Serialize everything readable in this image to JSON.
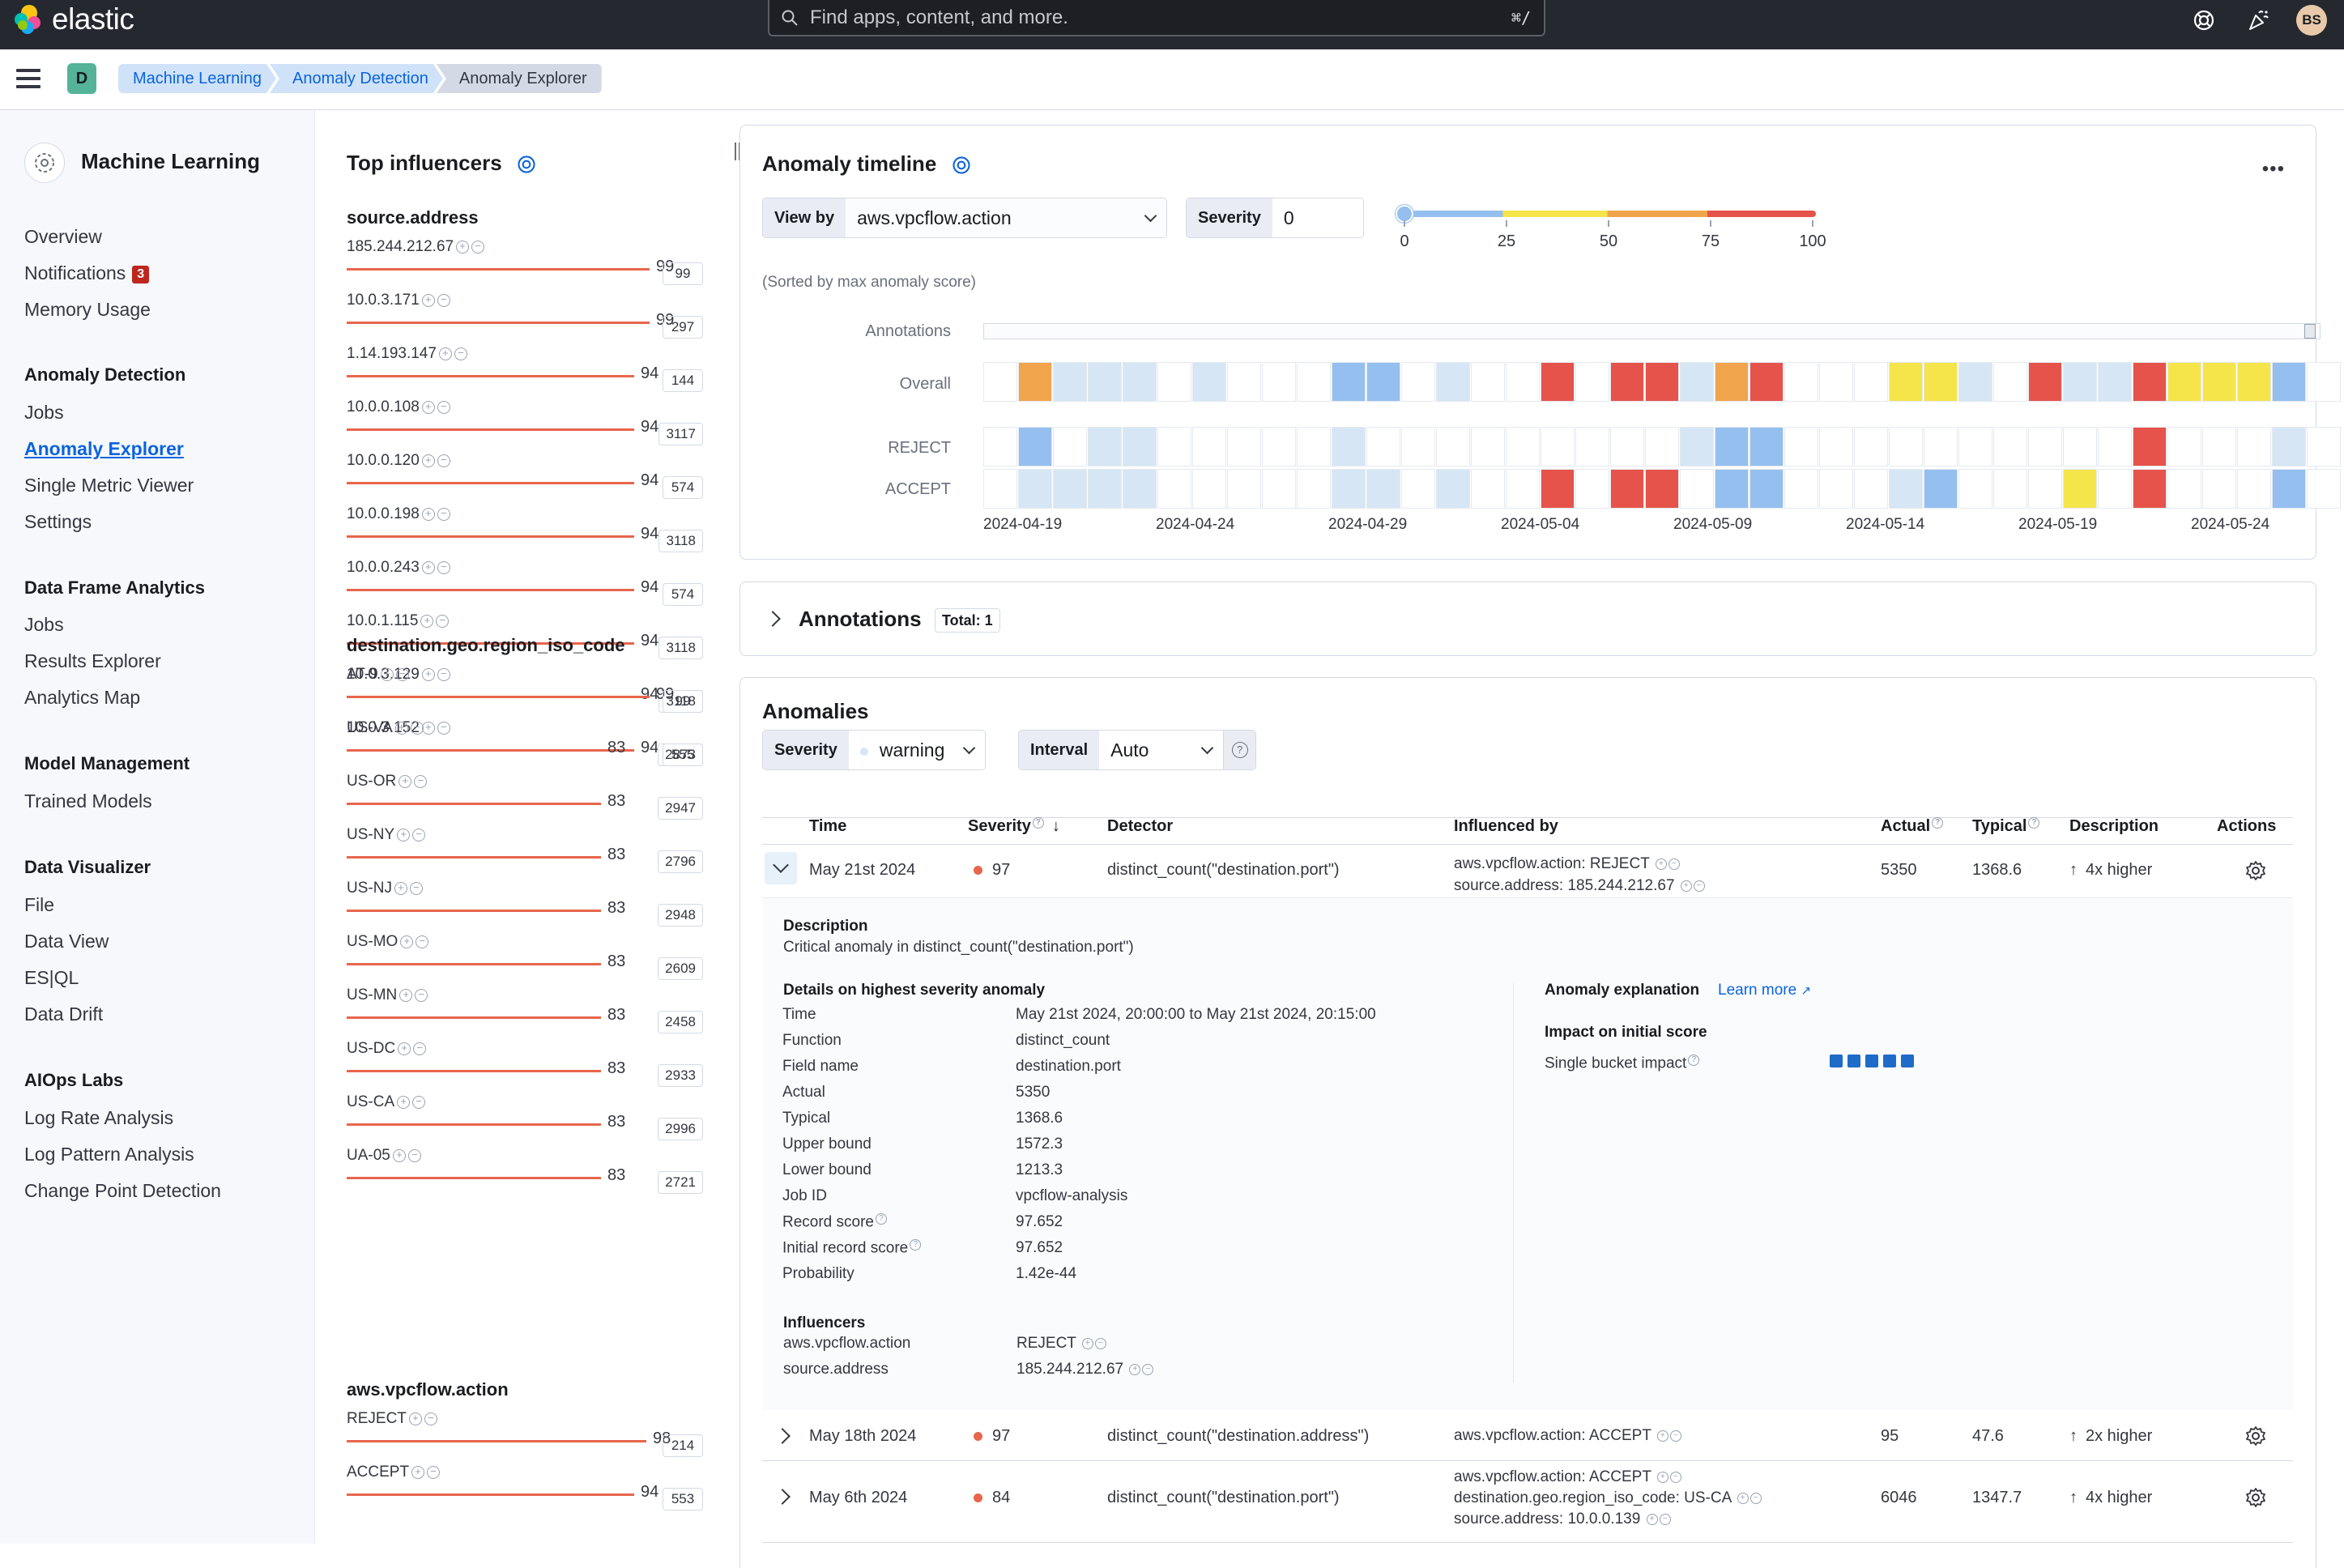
{
  "topbar": {
    "brand": "elastic",
    "search_placeholder": "Find apps, content, and more.",
    "search_shortcut": "⌘/",
    "avatar_initials": "BS"
  },
  "subbar": {
    "space_initial": "D",
    "breadcrumbs": [
      "Machine Learning",
      "Anomaly Detection",
      "Anomaly Explorer"
    ]
  },
  "sidebar": {
    "title": "Machine Learning",
    "items_top": [
      "Overview",
      "Notifications",
      "Memory Usage"
    ],
    "notifications_badge": "3",
    "sections": [
      {
        "title": "Anomaly Detection",
        "items": [
          "Jobs",
          "Anomaly Explorer",
          "Single Metric Viewer",
          "Settings"
        ]
      },
      {
        "title": "Data Frame Analytics",
        "items": [
          "Jobs",
          "Results Explorer",
          "Analytics Map"
        ]
      },
      {
        "title": "Model Management",
        "items": [
          "Trained Models"
        ]
      },
      {
        "title": "Data Visualizer",
        "items": [
          "File",
          "Data View",
          "ES|QL",
          "Data Drift"
        ]
      },
      {
        "title": "AIOps Labs",
        "items": [
          "Log Rate Analysis",
          "Log Pattern Analysis",
          "Change Point Detection"
        ]
      }
    ]
  },
  "influencers": {
    "title": "Top influencers",
    "groups": [
      {
        "field": "source.address",
        "rows": [
          {
            "name": "185.244.212.67",
            "score": 99,
            "count": "99"
          },
          {
            "name": "10.0.3.171",
            "score": 99,
            "count": "297"
          },
          {
            "name": "1.14.193.147",
            "score": 94,
            "count": "144"
          },
          {
            "name": "10.0.0.108",
            "score": 94,
            "count": "3117"
          },
          {
            "name": "10.0.0.120",
            "score": 94,
            "count": "574"
          },
          {
            "name": "10.0.0.198",
            "score": 94,
            "count": "3118"
          },
          {
            "name": "10.0.0.243",
            "score": 94,
            "count": "574"
          },
          {
            "name": "10.0.1.115",
            "score": 94,
            "count": "3118"
          },
          {
            "name": "10.0.3.129",
            "score": 94,
            "count": "3118"
          },
          {
            "name": "10.0.3.152",
            "score": 94,
            "count": "555"
          }
        ]
      },
      {
        "field": "destination.geo.region_iso_code",
        "rows": [
          {
            "name": "AT-9",
            "score": 99,
            "count": "99"
          },
          {
            "name": "US-VA",
            "score": 83,
            "count": "2873"
          },
          {
            "name": "US-OR",
            "score": 83,
            "count": "2947"
          },
          {
            "name": "US-NY",
            "score": 83,
            "count": "2796"
          },
          {
            "name": "US-NJ",
            "score": 83,
            "count": "2948"
          },
          {
            "name": "US-MO",
            "score": 83,
            "count": "2609"
          },
          {
            "name": "US-MN",
            "score": 83,
            "count": "2458"
          },
          {
            "name": "US-DC",
            "score": 83,
            "count": "2933"
          },
          {
            "name": "US-CA",
            "score": 83,
            "count": "2996"
          },
          {
            "name": "UA-05",
            "score": 83,
            "count": "2721"
          }
        ]
      },
      {
        "field": "aws.vpcflow.action",
        "rows": [
          {
            "name": "REJECT",
            "score": 98,
            "count": "214"
          },
          {
            "name": "ACCEPT",
            "score": 94,
            "count": "553"
          }
        ]
      }
    ]
  },
  "timeline": {
    "title": "Anomaly timeline",
    "view_by_label": "View by",
    "view_by_value": "aws.vpcflow.action",
    "severity_label": "Severity",
    "severity_value": "0",
    "scale_ticks": [
      "0",
      "25",
      "50",
      "75",
      "100"
    ],
    "sorted_note": "(Sorted by max anomaly score)",
    "rows": [
      "Annotations",
      "Overall",
      "REJECT",
      "ACCEPT"
    ],
    "x_labels": [
      "2024-04-19",
      "2024-04-24",
      "2024-04-29",
      "2024-05-04",
      "2024-05-09",
      "2024-05-14",
      "2024-05-19",
      "2024-05-24"
    ],
    "colors": {
      "lb": "#d6e6f5",
      "mb": "#94bfef",
      "y": "#f5e54a",
      "o": "#f0a54c",
      "r": "#e6534a",
      "w": "#ffffff"
    },
    "overall": [
      "w",
      "o",
      "lb",
      "lb",
      "lb",
      "w",
      "lb",
      "w",
      "w",
      "w",
      "mb",
      "mb",
      "w",
      "lb",
      "w",
      "w",
      "r",
      "w",
      "r",
      "r",
      "lb",
      "o",
      "r",
      "w",
      "w",
      "w",
      "y",
      "y",
      "lb",
      "w",
      "r",
      "lb",
      "lb",
      "r",
      "y",
      "y",
      "y",
      "mb",
      "w"
    ],
    "reject": [
      "w",
      "mb",
      "w",
      "lb",
      "lb",
      "w",
      "w",
      "w",
      "w",
      "w",
      "lb",
      "w",
      "w",
      "w",
      "w",
      "w",
      "w",
      "w",
      "w",
      "w",
      "lb",
      "mb",
      "mb",
      "w",
      "w",
      "w",
      "w",
      "w",
      "w",
      "w",
      "w",
      "w",
      "w",
      "r",
      "w",
      "w",
      "w",
      "lb",
      "w"
    ],
    "accept": [
      "w",
      "lb",
      "lb",
      "lb",
      "lb",
      "w",
      "w",
      "w",
      "w",
      "w",
      "lb",
      "lb",
      "w",
      "lb",
      "w",
      "w",
      "r",
      "w",
      "r",
      "r",
      "w",
      "mb",
      "mb",
      "w",
      "w",
      "w",
      "lb",
      "mb",
      "w",
      "w",
      "w",
      "y",
      "w",
      "r",
      "w",
      "w",
      "w",
      "mb",
      "w"
    ]
  },
  "annotations_panel": {
    "title": "Annotations",
    "total": "Total: 1"
  },
  "anomalies": {
    "title": "Anomalies",
    "severity_label": "Severity",
    "severity_value": "warning",
    "interval_label": "Interval",
    "interval_value": "Auto",
    "columns": [
      "Time",
      "Severity",
      "Detector",
      "Influenced by",
      "Actual",
      "Typical",
      "Description",
      "Actions"
    ],
    "rows": [
      {
        "time": "May 21st 2024",
        "severity": "97",
        "detector": "distinct_count(\"destination.port\")",
        "influenced": [
          "aws.vpcflow.action: REJECT",
          "source.address: 185.244.212.67"
        ],
        "actual": "5350",
        "typical": "1368.6",
        "desc": "4x higher"
      },
      {
        "time": "May 18th 2024",
        "severity": "97",
        "detector": "distinct_count(\"destination.address\")",
        "influenced": [
          "aws.vpcflow.action: ACCEPT"
        ],
        "actual": "95",
        "typical": "47.6",
        "desc": "2x higher"
      },
      {
        "time": "May 6th 2024",
        "severity": "84",
        "detector": "distinct_count(\"destination.port\")",
        "influenced": [
          "aws.vpcflow.action: ACCEPT",
          "destination.geo.region_iso_code: US-CA",
          "source.address: 10.0.0.139"
        ],
        "actual": "6046",
        "typical": "1347.7",
        "desc": "4x higher"
      }
    ],
    "expanded": {
      "description_label": "Description",
      "description": "Critical anomaly in distinct_count(\"destination.port\")",
      "details_title": "Details on highest severity anomaly",
      "details": [
        [
          "Time",
          "May 21st 2024, 20:00:00 to May 21st 2024, 20:15:00"
        ],
        [
          "Function",
          "distinct_count"
        ],
        [
          "Field name",
          "destination.port"
        ],
        [
          "Actual",
          "5350"
        ],
        [
          "Typical",
          "1368.6"
        ],
        [
          "Upper bound",
          "1572.3"
        ],
        [
          "Lower bound",
          "1213.3"
        ],
        [
          "Job ID",
          "vpcflow-analysis"
        ],
        [
          "Record score",
          "97.652"
        ],
        [
          "Initial record score",
          "97.652"
        ],
        [
          "Probability",
          "1.42e-44"
        ]
      ],
      "influencers_title": "Influencers",
      "influencers": [
        [
          "aws.vpcflow.action",
          "REJECT"
        ],
        [
          "source.address",
          "185.244.212.67"
        ]
      ],
      "explanation_title": "Anomaly explanation",
      "learn_more": "Learn more",
      "impact_title": "Impact on initial score",
      "single_bucket": "Single bucket impact",
      "single_bucket_level": 5
    }
  }
}
